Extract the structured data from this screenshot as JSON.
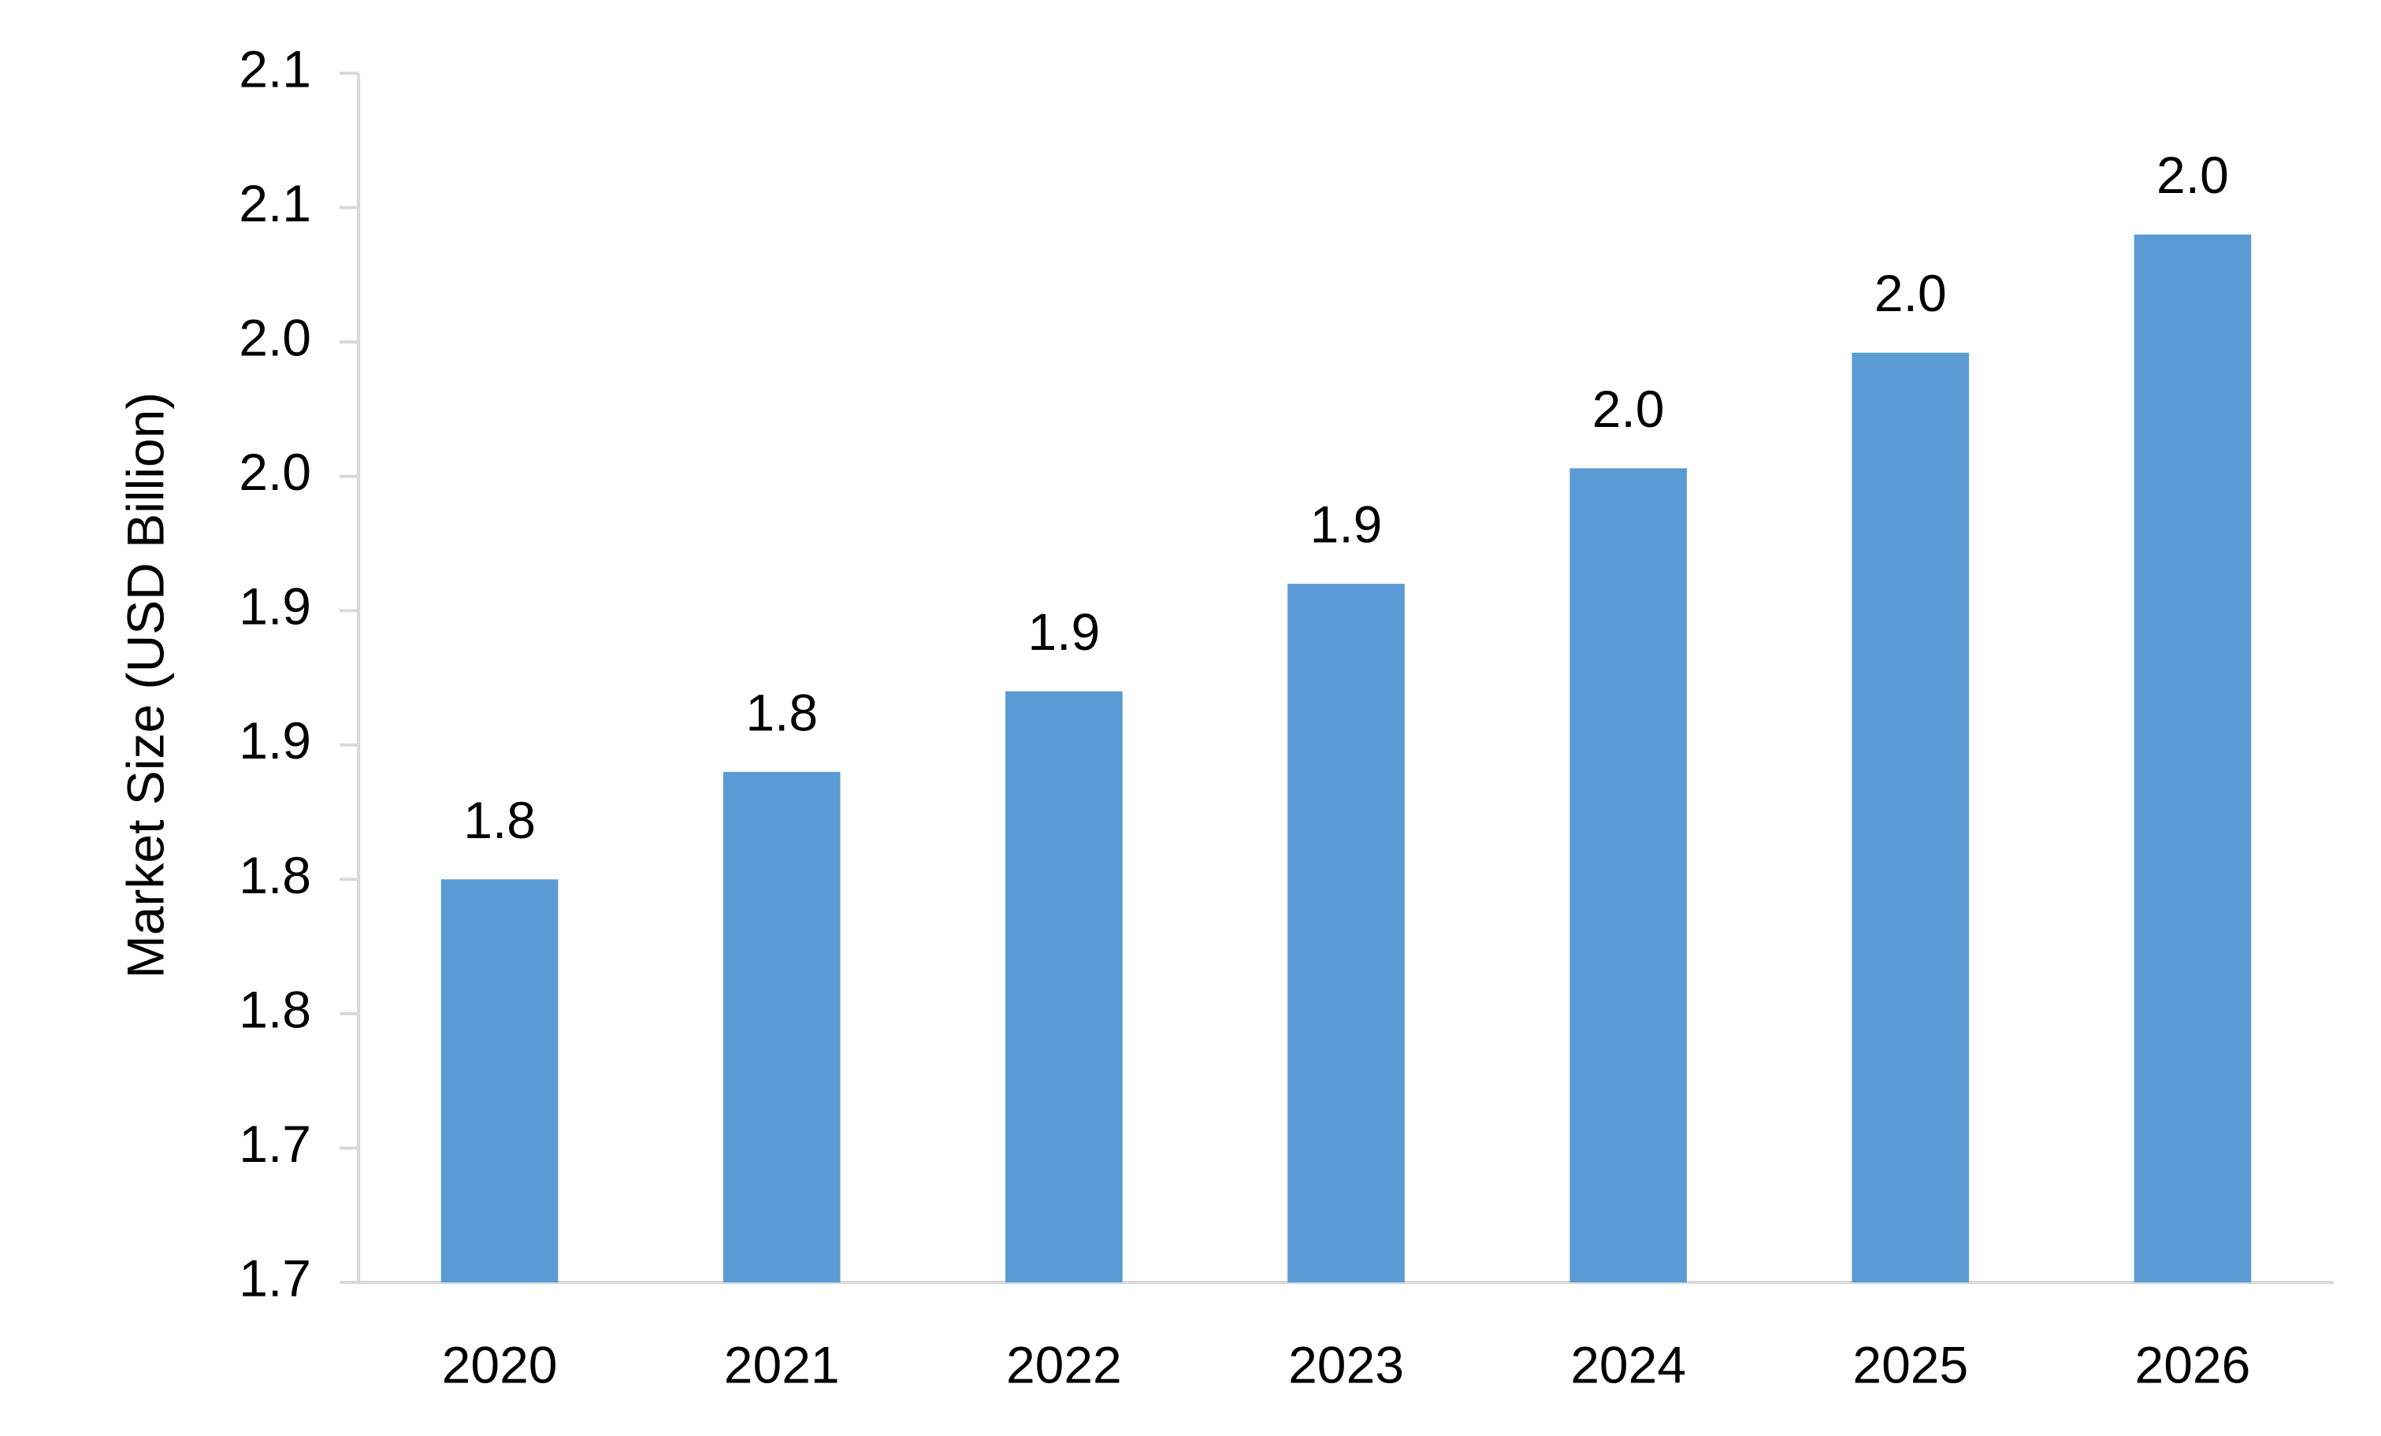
{
  "chart_data": {
    "type": "bar",
    "title": "",
    "xlabel": "",
    "ylabel": "Market Size (USD Billion)",
    "categories": [
      "2020",
      "2021",
      "2022",
      "2023",
      "2024",
      "2025",
      "2026"
    ],
    "values": [
      1.8,
      1.84,
      1.87,
      1.91,
      1.953,
      1.996,
      2.04
    ],
    "data_labels": [
      "1.8",
      "1.8",
      "1.9",
      "1.9",
      "2.0",
      "2.0",
      "2.0"
    ],
    "ylim": [
      1.65,
      2.1
    ],
    "y_ticks": [
      1.65,
      1.7,
      1.75,
      1.8,
      1.85,
      1.9,
      1.95,
      2.0,
      2.05,
      2.1
    ],
    "y_tick_labels": [
      "1.7",
      "1.7",
      "1.8",
      "1.8",
      "1.9",
      "1.9",
      "2.0",
      "2.0",
      "2.1",
      "2.1"
    ],
    "bar_color": "#5B9BD5",
    "axis_color": "#D9D9D9",
    "grid": false,
    "legend": "none"
  }
}
